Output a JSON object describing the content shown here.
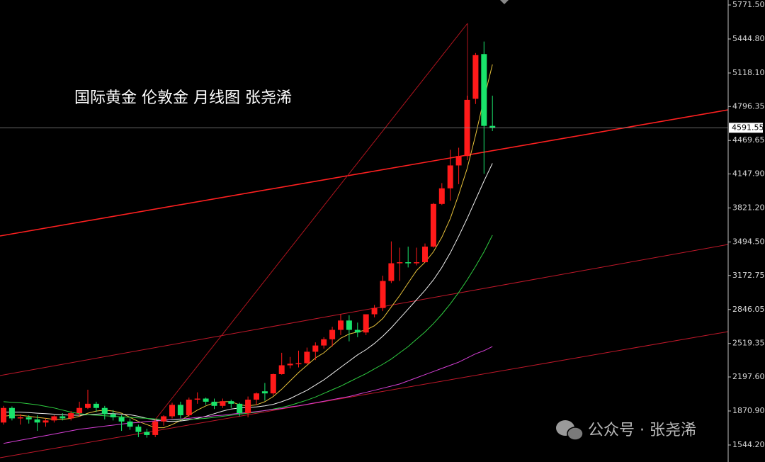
{
  "chart_data": {
    "type": "candlestick",
    "title": "国际黄金 伦敦金  月线图 张尧浠",
    "watermark": "公众号 · 张尧浠",
    "up_color": "#ff1a1a",
    "down_color": "#19e36b",
    "open": [
      1760,
      1900,
      1800,
      1810,
      1790,
      1760,
      1780,
      1820,
      1800,
      1850,
      1900,
      1940,
      1900,
      1840,
      1810,
      1770,
      1720,
      1670,
      1640,
      1770,
      1820,
      1930,
      1830,
      1980,
      1990,
      1960,
      1920,
      1965,
      1940,
      1850,
      1980,
      2060,
      2040,
      2225,
      2310,
      2325,
      2330,
      2440,
      2500,
      2560,
      2650,
      2740,
      2650,
      2625,
      2800,
      2860,
      3120,
      3290,
      3300,
      3290,
      3300,
      3450,
      3860,
      4010,
      4230,
      4320,
      4870,
      5300,
      4610
    ],
    "high": [
      1920,
      1915,
      1840,
      1830,
      1830,
      1800,
      1830,
      1850,
      1870,
      1960,
      2075,
      1960,
      1920,
      1880,
      1830,
      1800,
      1740,
      1700,
      1790,
      1830,
      1950,
      1960,
      2000,
      2050,
      2000,
      1990,
      1990,
      1980,
      1950,
      2010,
      2050,
      2140,
      2230,
      2430,
      2390,
      2450,
      2480,
      2530,
      2580,
      2680,
      2800,
      2790,
      2720,
      2800,
      2890,
      3170,
      3500,
      3440,
      3450,
      3440,
      3480,
      3870,
      4060,
      4380,
      4400,
      4900,
      5310,
      5420,
      4900
    ],
    "low": [
      1740,
      1780,
      1740,
      1750,
      1680,
      1720,
      1760,
      1780,
      1780,
      1820,
      1890,
      1860,
      1790,
      1780,
      1680,
      1690,
      1620,
      1615,
      1620,
      1730,
      1800,
      1800,
      1810,
      1940,
      1930,
      1890,
      1900,
      1900,
      1820,
      1810,
      1930,
      1970,
      2020,
      2220,
      2280,
      2290,
      2320,
      2360,
      2470,
      2490,
      2600,
      2540,
      2580,
      2600,
      2770,
      2830,
      3100,
      3120,
      3250,
      3270,
      3300,
      3440,
      3850,
      3890,
      4050,
      4280,
      4820,
      4150,
      4560
    ],
    "close": [
      1900,
      1800,
      1810,
      1790,
      1760,
      1780,
      1820,
      1800,
      1850,
      1900,
      1940,
      1900,
      1840,
      1810,
      1770,
      1720,
      1670,
      1640,
      1770,
      1820,
      1930,
      1830,
      1980,
      1990,
      1960,
      1920,
      1965,
      1940,
      1850,
      1980,
      2040,
      2040,
      2225,
      2310,
      2325,
      2330,
      2440,
      2500,
      2560,
      2650,
      2740,
      2650,
      2625,
      2800,
      2860,
      3120,
      3290,
      3300,
      3290,
      3300,
      3450,
      3860,
      4010,
      4230,
      4320,
      4860,
      5290,
      4610,
      4591.55
    ],
    "moving_averages": [
      {
        "color": "#e8c23a",
        "values": [
          1820,
          1830,
          1830,
          1820,
          1810,
          1800,
          1790,
          1790,
          1800,
          1820,
          1850,
          1870,
          1880,
          1870,
          1850,
          1810,
          1770,
          1740,
          1710,
          1710,
          1740,
          1780,
          1830,
          1880,
          1920,
          1950,
          1960,
          1960,
          1930,
          1920,
          1930,
          1960,
          2010,
          2080,
          2160,
          2240,
          2310,
          2380,
          2430,
          2500,
          2570,
          2610,
          2630,
          2650,
          2690,
          2760,
          2870,
          2980,
          3100,
          3220,
          3300,
          3400,
          3540,
          3720,
          3950,
          4200,
          4520,
          4870,
          5200
        ]
      },
      {
        "color": "#f0f0f0",
        "values": [
          1860,
          1860,
          1860,
          1855,
          1850,
          1845,
          1840,
          1835,
          1830,
          1830,
          1835,
          1840,
          1845,
          1845,
          1840,
          1835,
          1820,
          1800,
          1785,
          1775,
          1770,
          1775,
          1785,
          1800,
          1820,
          1845,
          1870,
          1890,
          1900,
          1905,
          1910,
          1920,
          1935,
          1960,
          1990,
          2030,
          2070,
          2120,
          2170,
          2230,
          2290,
          2350,
          2410,
          2460,
          2520,
          2590,
          2670,
          2760,
          2850,
          2940,
          3030,
          3130,
          3250,
          3390,
          3550,
          3720,
          3900,
          4080,
          4250
        ]
      },
      {
        "color": "#2ecc40",
        "values": [
          1960,
          1955,
          1950,
          1940,
          1930,
          1915,
          1900,
          1880,
          1860,
          1845,
          1835,
          1830,
          1825,
          1820,
          1815,
          1810,
          1805,
          1800,
          1795,
          1790,
          1785,
          1785,
          1790,
          1795,
          1800,
          1810,
          1820,
          1830,
          1840,
          1850,
          1860,
          1875,
          1890,
          1905,
          1925,
          1950,
          1975,
          2005,
          2040,
          2075,
          2110,
          2150,
          2190,
          2230,
          2275,
          2320,
          2370,
          2430,
          2490,
          2560,
          2630,
          2710,
          2800,
          2900,
          3010,
          3130,
          3260,
          3400,
          3560
        ]
      },
      {
        "color": "#d63fd6",
        "values": [
          1560,
          1575,
          1590,
          1605,
          1620,
          1635,
          1650,
          1665,
          1680,
          1695,
          1705,
          1715,
          1725,
          1735,
          1745,
          1755,
          1760,
          1770,
          1775,
          1780,
          1790,
          1795,
          1800,
          1810,
          1815,
          1825,
          1830,
          1840,
          1850,
          1855,
          1865,
          1875,
          1885,
          1895,
          1910,
          1920,
          1935,
          1950,
          1965,
          1980,
          1995,
          2010,
          2030,
          2050,
          2070,
          2090,
          2110,
          2130,
          2160,
          2190,
          2220,
          2250,
          2280,
          2310,
          2340,
          2380,
          2420,
          2450,
          2490
        ]
      }
    ],
    "last_price": 4591.55,
    "ylim": [
      1380.8,
      5819.2
    ],
    "yticks": [
      {
        "value": 5771.5,
        "label": "5771.50"
      },
      {
        "value": 5444.8,
        "label": "5444.80"
      },
      {
        "value": 5118.1,
        "label": "5118.10"
      },
      4796.35,
      4469.65,
      {
        "value": 4147.9,
        "label": "4147.90"
      },
      {
        "value": 3821.2,
        "label": "3821.20"
      },
      {
        "value": 3494.5,
        "label": "3494.50"
      },
      3172.75,
      2846.05,
      2519.35,
      {
        "value": 2197.6,
        "label": "2197.60"
      },
      {
        "value": 1870.9,
        "label": "1870.90"
      },
      {
        "value": 1544.2,
        "label": "1544.20"
      }
    ],
    "grid": false
  }
}
